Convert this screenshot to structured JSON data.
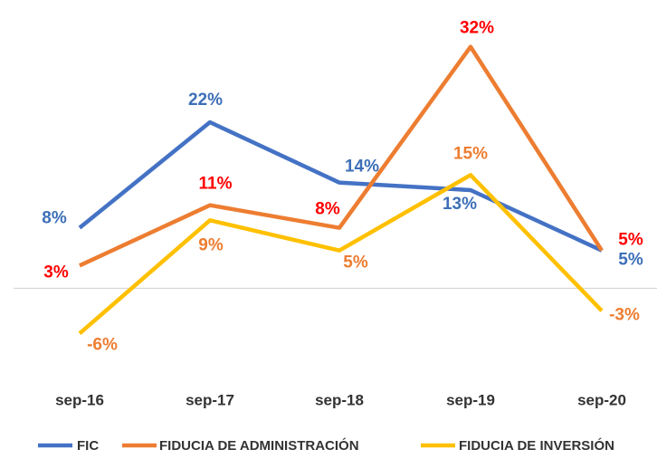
{
  "chart_data": {
    "type": "line",
    "categories": [
      "sep-16",
      "sep-17",
      "sep-18",
      "sep-19",
      "sep-20"
    ],
    "series": [
      {
        "name": "FIC",
        "color": "#4472c4",
        "label_color": "#3d6fb8",
        "values": [
          8,
          22,
          14,
          13,
          5
        ],
        "value_labels": [
          "8%",
          "22%",
          "14%",
          "13%",
          "5%"
        ]
      },
      {
        "name": "FIDUCIA DE ADMINISTRACIÓN",
        "color": "#ed7d31",
        "label_color": "#ff0000",
        "values": [
          3,
          11,
          8,
          32,
          5
        ],
        "value_labels": [
          "3%",
          "11%",
          "8%",
          "32%",
          "5%"
        ]
      },
      {
        "name": "FIDUCIA DE INVERSIÓN",
        "color": "#ffc000",
        "label_color": "#ed7d31",
        "values": [
          -6,
          9,
          5,
          15,
          -3
        ],
        "value_labels": [
          "-6%",
          "9%",
          "5%",
          "15%",
          "-3%"
        ]
      }
    ],
    "ylim": [
      -11,
      37
    ],
    "legend": "bottom"
  }
}
